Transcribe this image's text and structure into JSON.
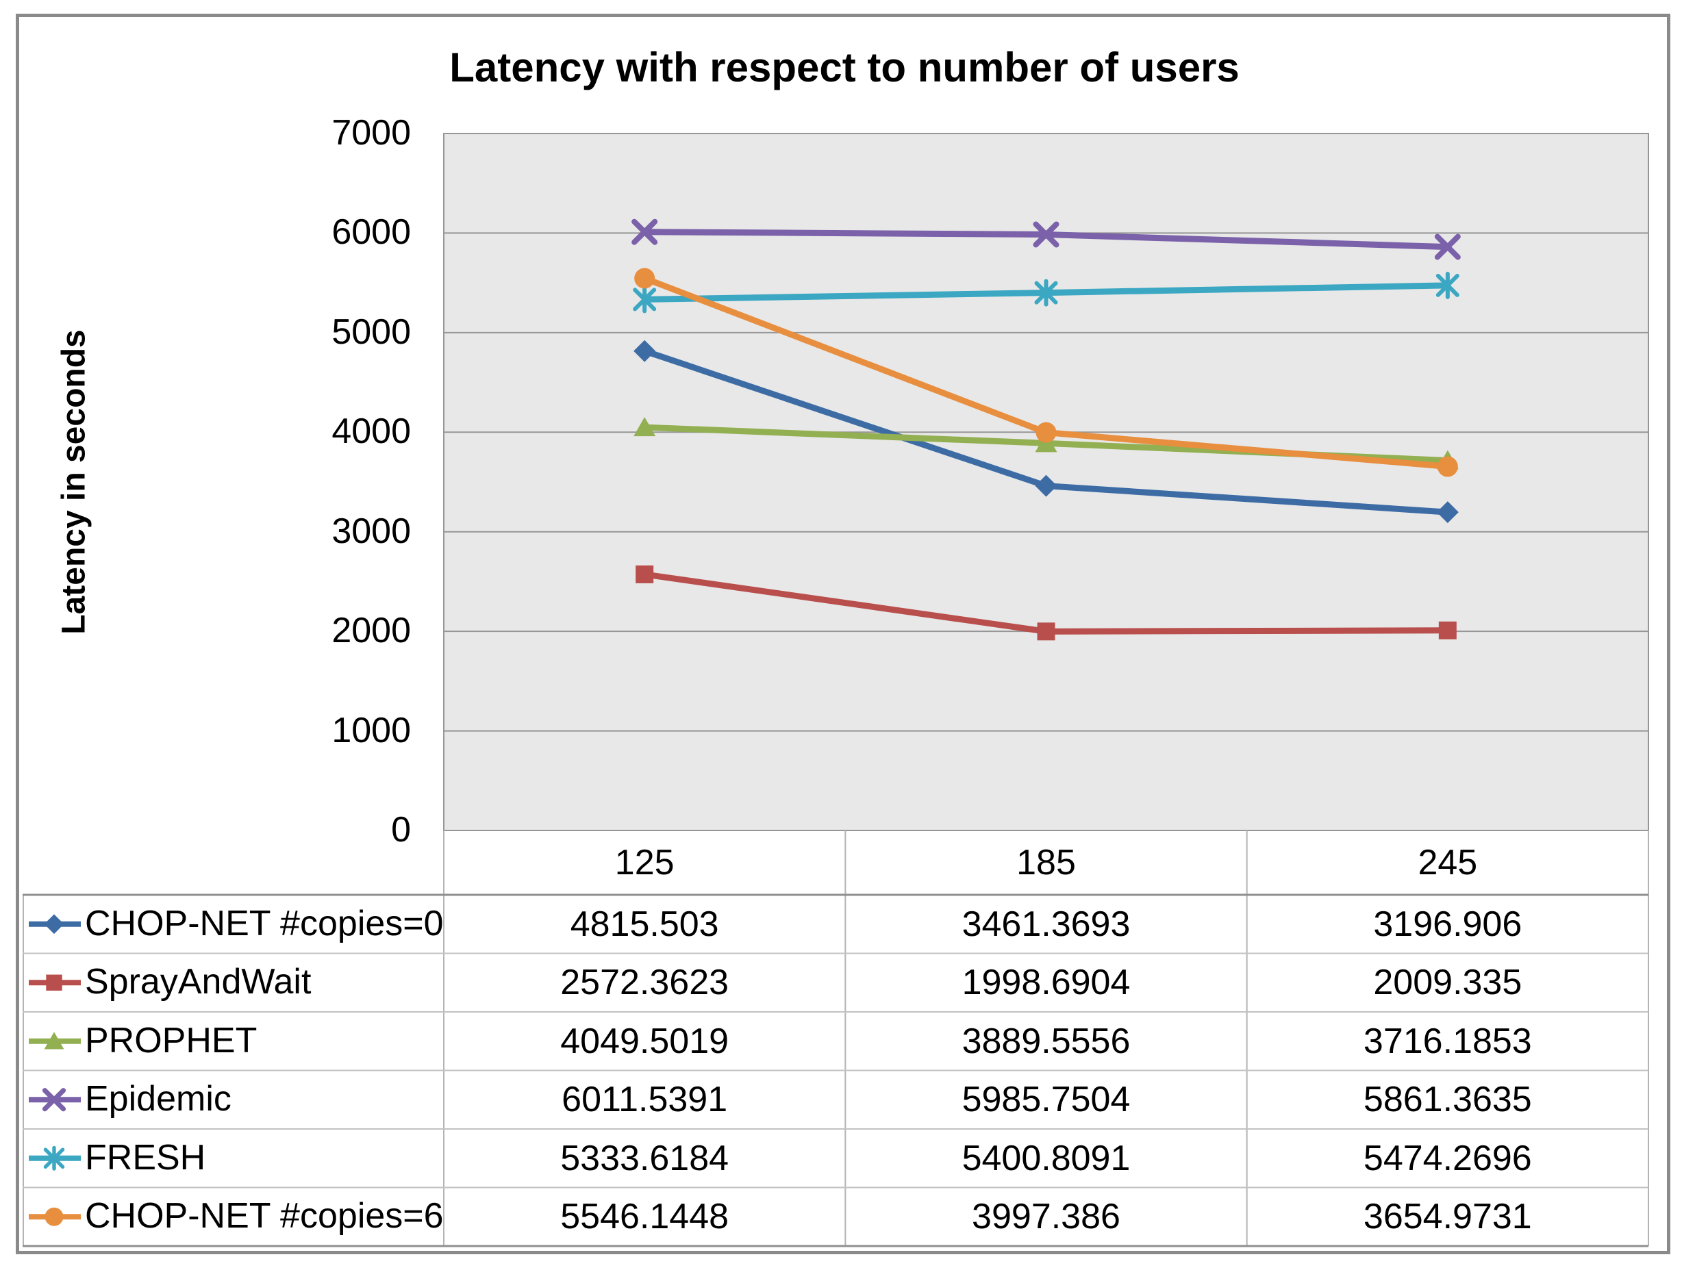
{
  "title": "Latency with respect to number of users",
  "y_axis": {
    "title": "Latency in seconds"
  },
  "chart_data": {
    "type": "line",
    "title": "Latency with respect to number of users",
    "xlabel": "",
    "ylabel": "Latency in seconds",
    "ylim": [
      0,
      7000
    ],
    "ytick_step": 1000,
    "yticks": [
      "7000",
      "6000",
      "5000",
      "4000",
      "3000",
      "2000",
      "1000",
      "0"
    ],
    "grid": true,
    "plot_bg_color": "#E8E8E8",
    "gridline_color": "#969696",
    "legend_position": "data-table-left",
    "categories": [
      "125",
      "185",
      "245"
    ],
    "series": [
      {
        "name": "CHOP-NET #copies=0",
        "color": "#3D6CA5",
        "marker": "diamond",
        "values": [
          4815.503,
          3461.3693,
          3196.906
        ]
      },
      {
        "name": "SprayAndWait",
        "color": "#B94F4C",
        "marker": "square",
        "values": [
          2572.3623,
          1998.6904,
          2009.335
        ]
      },
      {
        "name": "PROPHET",
        "color": "#92AF52",
        "marker": "triangle",
        "values": [
          4049.5019,
          3889.5556,
          3716.1853
        ]
      },
      {
        "name": "Epidemic",
        "color": "#7A61A9",
        "marker": "x",
        "values": [
          6011.5391,
          5985.7504,
          5861.3635
        ]
      },
      {
        "name": "FRESH",
        "color": "#3BA7C2",
        "marker": "asterisk",
        "values": [
          5333.6184,
          5400.8091,
          5474.2696
        ]
      },
      {
        "name": "CHOP-NET #copies=6",
        "color": "#E88E3F",
        "marker": "circle",
        "values": [
          5546.1448,
          3997.386,
          3654.9731
        ]
      }
    ]
  }
}
